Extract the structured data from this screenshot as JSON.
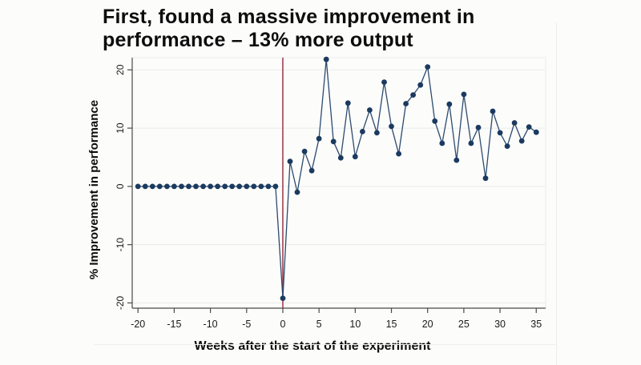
{
  "slide": {
    "title_line1": "First, found a massive improvement in",
    "title_line2": "performance – 13% more output"
  },
  "chart_data": {
    "type": "scatter",
    "title": "First, found a massive improvement in performance – 13% more output",
    "xlabel": "Weeks after the start of the experiment",
    "ylabel": "% Improvement in performance",
    "x_ticks": [
      -20,
      -15,
      -10,
      -5,
      0,
      5,
      10,
      15,
      20,
      25,
      30,
      35
    ],
    "y_ticks": [
      20,
      10,
      0,
      -10,
      -20
    ],
    "xlim": [
      -20.8,
      36.3
    ],
    "ylim": [
      -20.9,
      22.1
    ],
    "grid": true,
    "legend": "none",
    "vline_x": 0,
    "colors": {
      "marker": "#1b3a5f",
      "line": "#2c4a6e",
      "vline": "#a0424f",
      "grid": "#e9ebec",
      "axis": "#4a4a4a",
      "tick_label": "#1a1a1a",
      "frame": "#ececea"
    },
    "points": [
      [
        -20,
        0
      ],
      [
        -19,
        0
      ],
      [
        -18,
        0
      ],
      [
        -17,
        0
      ],
      [
        -16,
        0
      ],
      [
        -15,
        0
      ],
      [
        -14,
        0
      ],
      [
        -13,
        0
      ],
      [
        -12,
        0
      ],
      [
        -11,
        0
      ],
      [
        -10,
        0
      ],
      [
        -9,
        0
      ],
      [
        -8,
        0
      ],
      [
        -7,
        0
      ],
      [
        -6,
        0
      ],
      [
        -5,
        0
      ],
      [
        -4,
        0
      ],
      [
        -3,
        0
      ],
      [
        -2,
        0
      ],
      [
        -1,
        0
      ],
      [
        0,
        -19.2
      ],
      [
        1,
        4.3
      ],
      [
        2,
        -1.0
      ],
      [
        3,
        6.0
      ],
      [
        4,
        2.7
      ],
      [
        5,
        8.2
      ],
      [
        6,
        21.8
      ],
      [
        7,
        7.7
      ],
      [
        8,
        4.9
      ],
      [
        9,
        14.3
      ],
      [
        10,
        5.1
      ],
      [
        11,
        9.4
      ],
      [
        12,
        13.1
      ],
      [
        13,
        9.2
      ],
      [
        14,
        17.9
      ],
      [
        15,
        10.3
      ],
      [
        16,
        5.6
      ],
      [
        17,
        14.2
      ],
      [
        18,
        15.7
      ],
      [
        19,
        17.4
      ],
      [
        20,
        20.5
      ],
      [
        21,
        11.2
      ],
      [
        22,
        7.4
      ],
      [
        23,
        14.1
      ],
      [
        24,
        4.5
      ],
      [
        25,
        15.8
      ],
      [
        26,
        7.4
      ],
      [
        27,
        10.1
      ],
      [
        28,
        1.4
      ],
      [
        29,
        12.9
      ],
      [
        30,
        9.2
      ],
      [
        31,
        6.9
      ],
      [
        32,
        10.9
      ],
      [
        33,
        7.8
      ],
      [
        34,
        10.2
      ],
      [
        35,
        9.3
      ]
    ]
  }
}
